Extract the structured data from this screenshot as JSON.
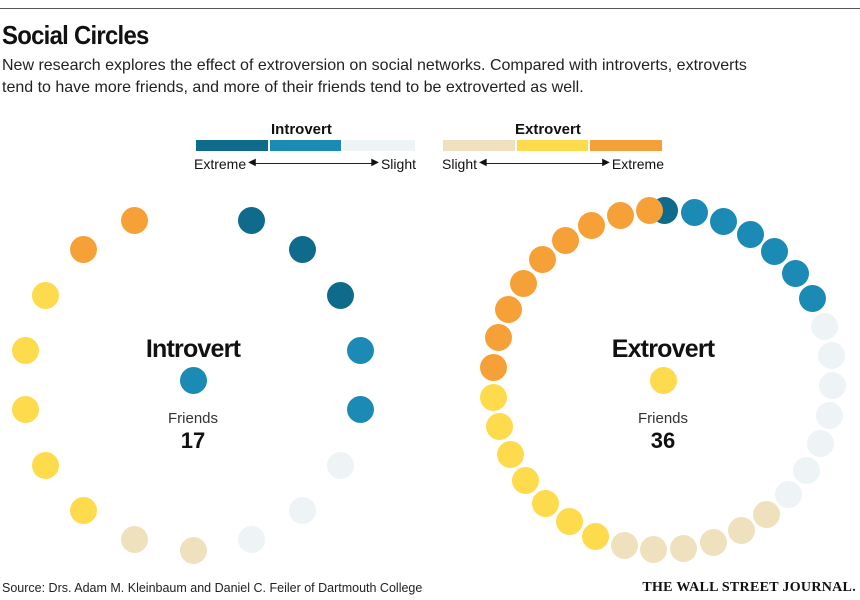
{
  "title": "Social Circles",
  "subtitle": "New research explores the effect of extroversion on social networks. Compared with introverts, extroverts tend to have more friends, and more of their friends tend to be extroverted as well.",
  "legend": {
    "introvert": {
      "title": "Introvert",
      "colors": [
        "#0e6b8c",
        "#1b8ab4",
        "#eef3f6"
      ],
      "left_label": "Extreme",
      "right_label": "Slight"
    },
    "extrovert": {
      "title": "Extrovert",
      "colors": [
        "#efe1bd",
        "#fddb4c",
        "#f6a137"
      ],
      "left_label": "Slight",
      "right_label": "Extreme"
    }
  },
  "networks": [
    {
      "label": "Introvert",
      "friends_label": "Friends",
      "friends_count": "17",
      "center_color": "#1b8ab4",
      "friend_colors": [
        "#0e6b8c",
        "#0e6b8c",
        "#0e6b8c",
        "#1b8ab4",
        "#1b8ab4",
        "#eef3f6",
        "#eef3f6",
        "#eef3f6",
        "#efe1bd",
        "#efe1bd",
        "#fddb4c",
        "#fddb4c",
        "#fddb4c",
        "#fddb4c",
        "#fddb4c",
        "#f6a137",
        "#f6a137"
      ]
    },
    {
      "label": "Extrovert",
      "friends_label": "Friends",
      "friends_count": "36",
      "center_color": "#fddb4c",
      "friend_colors": [
        "#0e6b8c",
        "#1b8ab4",
        "#1b8ab4",
        "#1b8ab4",
        "#1b8ab4",
        "#1b8ab4",
        "#1b8ab4",
        "#eef3f6",
        "#eef3f6",
        "#eef3f6",
        "#eef3f6",
        "#eef3f6",
        "#eef3f6",
        "#eef3f6",
        "#efe1bd",
        "#efe1bd",
        "#efe1bd",
        "#efe1bd",
        "#efe1bd",
        "#efe1bd",
        "#fddb4c",
        "#fddb4c",
        "#fddb4c",
        "#fddb4c",
        "#fddb4c",
        "#fddb4c",
        "#fddb4c",
        "#f6a137",
        "#f6a137",
        "#f6a137",
        "#f6a137",
        "#f6a137",
        "#f6a137",
        "#f6a137",
        "#f6a137",
        "#f6a137"
      ]
    }
  ],
  "source": "Source: Drs. Adam M. Kleinbaum and Daniel C. Feiler of Dartmouth College",
  "publisher": "THE WALL STREET JOURNAL."
}
